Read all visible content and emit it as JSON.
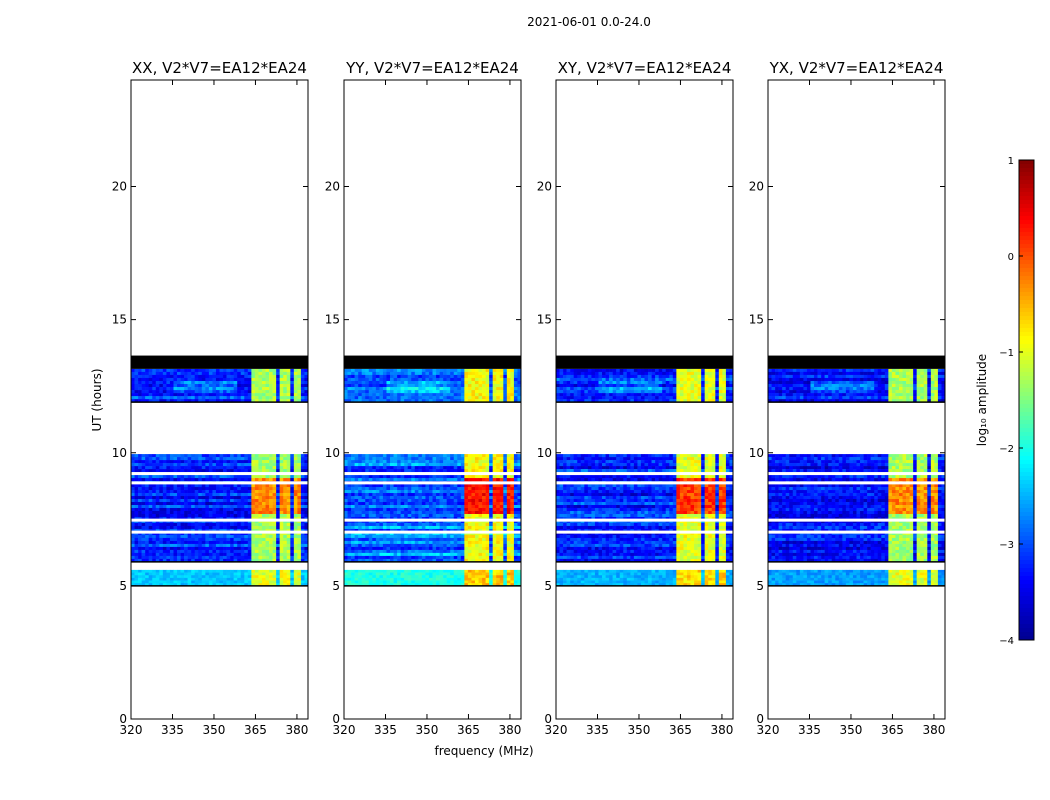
{
  "figure": {
    "suptitle": "2021-06-01 0.0-24.0",
    "xlabel": "frequency (MHz)",
    "ylabel": "UT (hours)"
  },
  "chart_data": {
    "type": "heatmap",
    "x_range": [
      320,
      384
    ],
    "y_range": [
      0,
      24
    ],
    "x_ticks": [
      "320",
      "335",
      "350",
      "365",
      "380"
    ],
    "y_ticks": [
      "0",
      "5",
      "10",
      "15",
      "20"
    ],
    "colorbar": {
      "label": "log₁₀ amplitude",
      "range": [
        -4,
        1
      ],
      "ticks": [
        "−4",
        "−3",
        "−2",
        "−1",
        "0",
        "1"
      ],
      "colormap": [
        "#00008f",
        "#0000ff",
        "#0080ff",
        "#00ffff",
        "#80ff80",
        "#ffff00",
        "#ff8000",
        "#ff0000",
        "#800000"
      ]
    },
    "panels": [
      {
        "title": "XX, V2*V7=EA12*EA24",
        "background": -3.2,
        "band": -1.3,
        "band_peak": -0.3,
        "low_band": -2.4,
        "variation": 0.35
      },
      {
        "title": "YY, V2*V7=EA12*EA24",
        "background": -2.8,
        "band": -0.9,
        "band_peak": 0.3,
        "low_band": -2.0,
        "variation": 0.45
      },
      {
        "title": "XY, V2*V7=EA12*EA24",
        "background": -3.2,
        "band": -1.0,
        "band_peak": 0.1,
        "low_band": -2.5,
        "variation": 0.35
      },
      {
        "title": "YX, V2*V7=EA12*EA24",
        "background": -3.3,
        "band": -1.3,
        "band_peak": -0.3,
        "low_band": -2.6,
        "variation": 0.3
      }
    ],
    "data_segments_hours": [
      [
        5.0,
        5.6
      ],
      [
        5.9,
        9.95
      ],
      [
        11.9,
        13.15
      ]
    ],
    "blank_rows_hours": [
      7.0,
      7.45,
      8.85,
      9.2
    ],
    "flagged_rows_hours": [
      [
        13.15,
        13.65
      ]
    ],
    "bright_band_mhz": [
      [
        363,
        368
      ],
      [
        368.5,
        373
      ],
      [
        373.5,
        378
      ],
      [
        378.5,
        382
      ]
    ]
  }
}
